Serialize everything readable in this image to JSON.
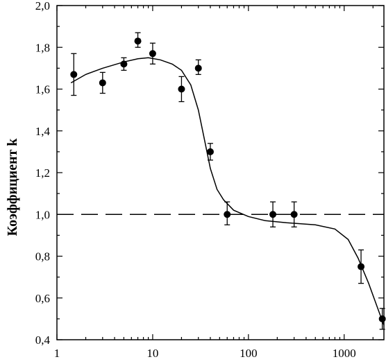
{
  "chart_data": {
    "type": "scatter",
    "ylabel": "Коэффициент k",
    "xlabel": "",
    "xscale": "log",
    "xlim": [
      1,
      2600
    ],
    "ylim": [
      0.4,
      2.0
    ],
    "x_ticks": [
      1,
      10,
      100,
      1000
    ],
    "x_tick_labels": [
      "1",
      "10",
      "100",
      "1000"
    ],
    "y_ticks": [
      0.4,
      0.6,
      0.8,
      1.0,
      1.2,
      1.4,
      1.6,
      1.8,
      2.0
    ],
    "y_tick_labels": [
      "0,4",
      "0,6",
      "0,8",
      "1,0",
      "1,2",
      "1,4",
      "1,6",
      "1,8",
      "2,0"
    ],
    "grid": false,
    "points": [
      {
        "x": 1.5,
        "y": 1.67,
        "err_low": 1.57,
        "err_high": 1.77
      },
      {
        "x": 3,
        "y": 1.63,
        "err_low": 1.58,
        "err_high": 1.68
      },
      {
        "x": 5,
        "y": 1.72,
        "err_low": 1.69,
        "err_high": 1.75
      },
      {
        "x": 7,
        "y": 1.83,
        "err_low": 1.8,
        "err_high": 1.87
      },
      {
        "x": 10,
        "y": 1.77,
        "err_low": 1.72,
        "err_high": 1.82
      },
      {
        "x": 20,
        "y": 1.6,
        "err_low": 1.54,
        "err_high": 1.66
      },
      {
        "x": 30,
        "y": 1.7,
        "err_low": 1.67,
        "err_high": 1.74
      },
      {
        "x": 40,
        "y": 1.3,
        "err_low": 1.26,
        "err_high": 1.34
      },
      {
        "x": 60,
        "y": 1.0,
        "err_low": 0.95,
        "err_high": 1.06
      },
      {
        "x": 180,
        "y": 1.0,
        "err_low": 0.94,
        "err_high": 1.06
      },
      {
        "x": 300,
        "y": 1.0,
        "err_low": 0.94,
        "err_high": 1.06
      },
      {
        "x": 1500,
        "y": 0.75,
        "err_low": 0.67,
        "err_high": 0.83
      },
      {
        "x": 2500,
        "y": 0.5,
        "err_low": 0.45,
        "err_high": 0.55
      }
    ],
    "fit_curve": [
      {
        "x": 1.4,
        "y": 1.63
      },
      {
        "x": 2,
        "y": 1.67
      },
      {
        "x": 3,
        "y": 1.7
      },
      {
        "x": 5,
        "y": 1.73
      },
      {
        "x": 7,
        "y": 1.745
      },
      {
        "x": 9,
        "y": 1.75
      },
      {
        "x": 12,
        "y": 1.74
      },
      {
        "x": 16,
        "y": 1.72
      },
      {
        "x": 20,
        "y": 1.69
      },
      {
        "x": 25,
        "y": 1.62
      },
      {
        "x": 30,
        "y": 1.5
      },
      {
        "x": 35,
        "y": 1.35
      },
      {
        "x": 40,
        "y": 1.22
      },
      {
        "x": 47,
        "y": 1.12
      },
      {
        "x": 55,
        "y": 1.07
      },
      {
        "x": 70,
        "y": 1.02
      },
      {
        "x": 100,
        "y": 0.99
      },
      {
        "x": 150,
        "y": 0.97
      },
      {
        "x": 250,
        "y": 0.96
      },
      {
        "x": 500,
        "y": 0.95
      },
      {
        "x": 800,
        "y": 0.93
      },
      {
        "x": 1100,
        "y": 0.88
      },
      {
        "x": 1400,
        "y": 0.79
      },
      {
        "x": 1800,
        "y": 0.67
      },
      {
        "x": 2200,
        "y": 0.56
      },
      {
        "x": 2500,
        "y": 0.49
      },
      {
        "x": 2600,
        "y": 0.47
      }
    ],
    "reference_line": {
      "y": 1.0,
      "style": "dashed"
    }
  }
}
